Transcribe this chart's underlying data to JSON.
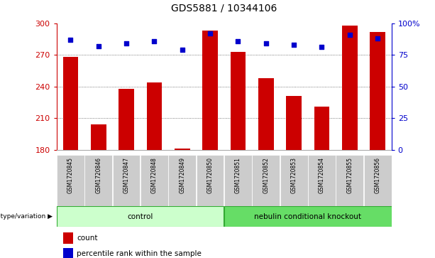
{
  "title": "GDS5881 / 10344106",
  "samples": [
    "GSM1720845",
    "GSM1720846",
    "GSM1720847",
    "GSM1720848",
    "GSM1720849",
    "GSM1720850",
    "GSM1720851",
    "GSM1720852",
    "GSM1720853",
    "GSM1720854",
    "GSM1720855",
    "GSM1720856"
  ],
  "counts": [
    268,
    204,
    238,
    244,
    181,
    293,
    273,
    248,
    231,
    221,
    298,
    292
  ],
  "percentiles": [
    87,
    82,
    84,
    86,
    79,
    92,
    86,
    84,
    83,
    81,
    91,
    88
  ],
  "ymin": 180,
  "ymax": 300,
  "yticks": [
    180,
    210,
    240,
    270,
    300
  ],
  "bar_color": "#cc0000",
  "dot_color": "#0000cc",
  "group_control": {
    "label": "control",
    "start": 0,
    "end": 5
  },
  "group_ko": {
    "label": "nebulin conditional knockout",
    "start": 6,
    "end": 11
  },
  "genotype_label": "genotype/variation",
  "legend_count": "count",
  "legend_pct": "percentile rank within the sample",
  "right_yticks": [
    0,
    25,
    50,
    75,
    100
  ],
  "right_ylabels": [
    "0",
    "25",
    "50",
    "75",
    "100%"
  ],
  "ctrl_color": "#ccffcc",
  "ko_color": "#66dd66",
  "border_color": "#33aa33",
  "sample_bg": "#cccccc"
}
